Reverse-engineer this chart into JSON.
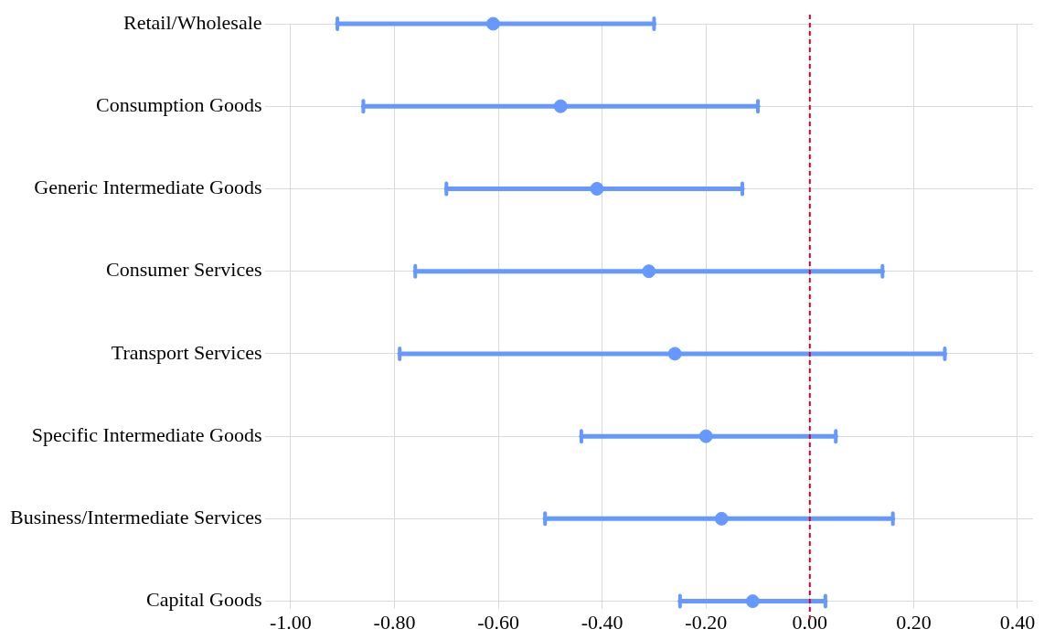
{
  "chart_data": {
    "type": "scatter",
    "orientation": "horizontal",
    "categories": [
      "Retail/Wholesale",
      "Consumption Goods",
      "Generic Intermediate Goods",
      "Consumer Services",
      "Transport Services",
      "Specific Intermediate Goods",
      "Business/Intermediate Services",
      "Capital Goods"
    ],
    "values": [
      -0.61,
      -0.48,
      -0.41,
      -0.31,
      -0.26,
      -0.2,
      -0.17,
      -0.11
    ],
    "errors": [
      [
        -0.91,
        -0.3
      ],
      [
        -0.86,
        -0.1
      ],
      [
        -0.7,
        -0.13
      ],
      [
        -0.76,
        0.14
      ],
      [
        -0.79,
        0.26
      ],
      [
        -0.44,
        0.05
      ],
      [
        -0.51,
        0.16
      ],
      [
        -0.25,
        0.03
      ]
    ],
    "color": "#6699ff",
    "marker": "circle",
    "xlim": [
      -1.05,
      0.43
    ],
    "xticks": [
      {
        "value": -1,
        "label": "-1.00"
      },
      {
        "value": -0.8,
        "label": "-0.80"
      },
      {
        "value": -0.6,
        "label": "-0.60"
      },
      {
        "value": -0.4,
        "label": "-0.40"
      },
      {
        "value": -0.2,
        "label": "-0.20"
      },
      {
        "value": 0,
        "label": "0.00"
      },
      {
        "value": 0.2,
        "label": "0.20"
      },
      {
        "value": 0.4,
        "label": "0.40"
      }
    ],
    "ref_lines": [
      {
        "axis": "x",
        "value": 0,
        "color": "#d6002a",
        "line_style": "dashed"
      }
    ],
    "grid": true,
    "legend": false
  }
}
